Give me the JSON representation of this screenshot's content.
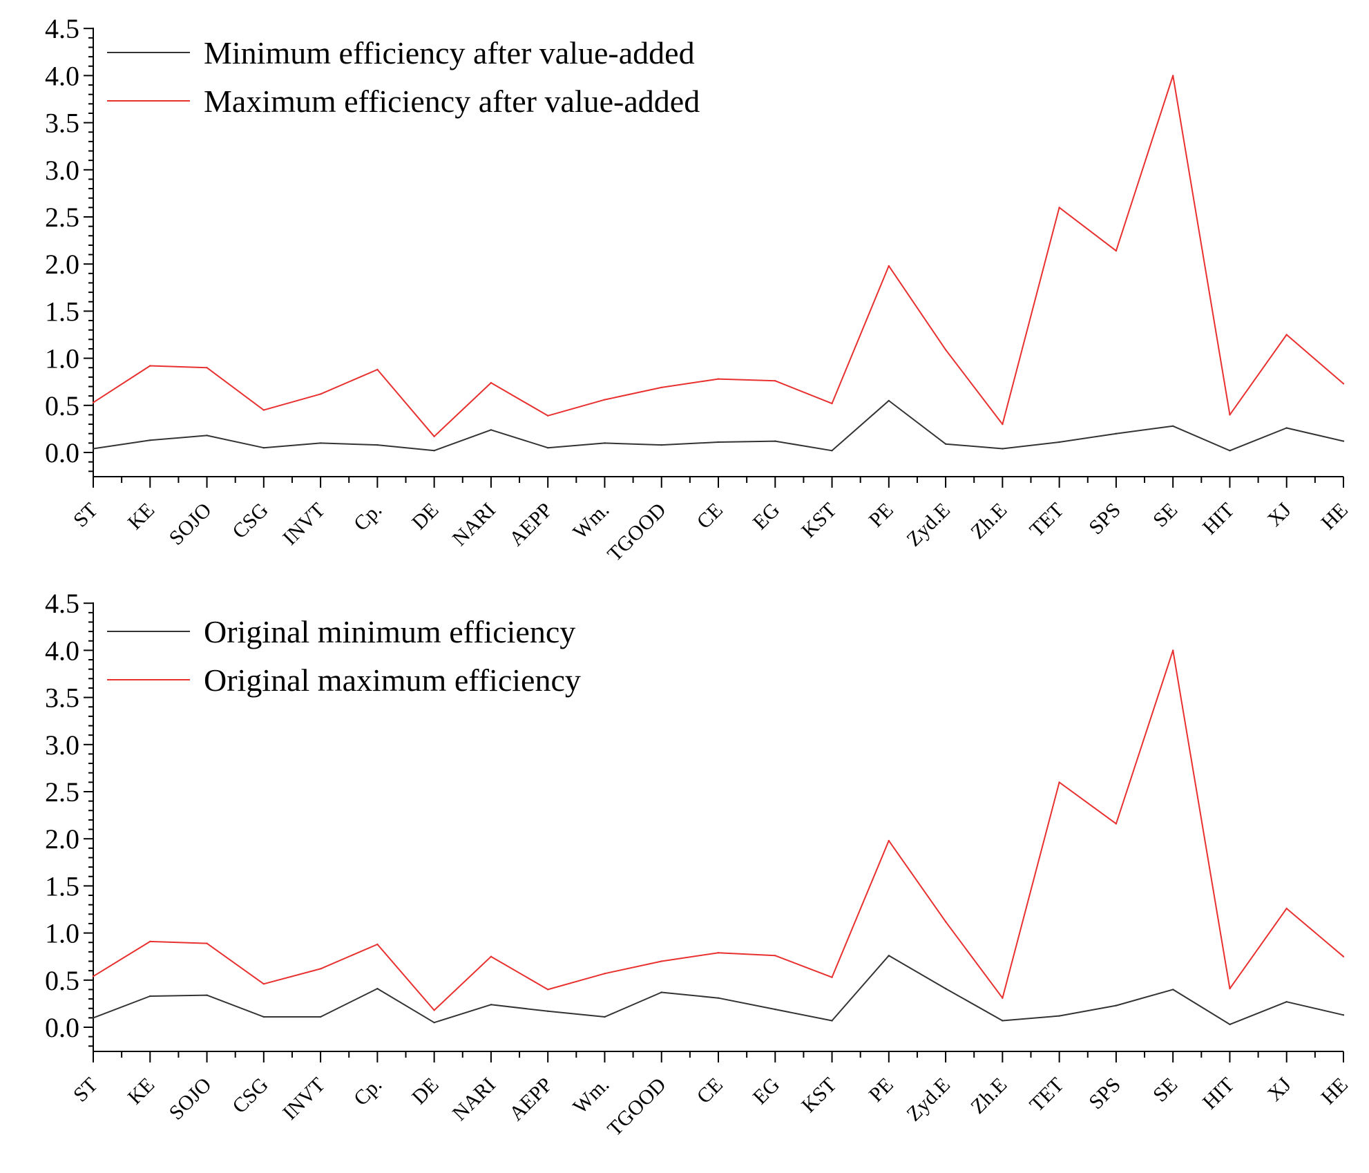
{
  "chart_data": [
    {
      "type": "line",
      "categories": [
        "ST",
        "KE",
        "SOJO",
        "CSG",
        "INVT",
        "Cp.",
        "DE",
        "NARI",
        "AEPP",
        "Wm.",
        "TGOOD",
        "CE",
        "EG",
        "KST",
        "PE",
        "Zyd.E",
        "Zh.E",
        "TET",
        "SPS",
        "SE",
        "HIT",
        "XJ",
        "HE"
      ],
      "ylim": [
        -0.25,
        4.5
      ],
      "yticks": [
        0.0,
        0.5,
        1.0,
        1.5,
        2.0,
        2.5,
        3.0,
        3.5,
        4.0,
        4.5
      ],
      "ytick_labels": [
        "0.0",
        "0.5",
        "1.0",
        "1.5",
        "2.0",
        "2.5",
        "3.0",
        "3.5",
        "4.0",
        "4.5"
      ],
      "legend_position": "top-left",
      "series": [
        {
          "name": "Minimum efficiency after value-added",
          "color": "#333333",
          "values": [
            0.04,
            0.13,
            0.18,
            0.05,
            0.1,
            0.08,
            0.02,
            0.24,
            0.05,
            0.1,
            0.08,
            0.11,
            0.12,
            0.02,
            0.55,
            0.09,
            0.04,
            0.11,
            0.2,
            0.28,
            0.02,
            0.26,
            0.12
          ]
        },
        {
          "name": "Maximum efficiency after value-added",
          "color": "#e8302f",
          "values": [
            0.53,
            0.92,
            0.9,
            0.45,
            0.62,
            0.88,
            0.17,
            0.74,
            0.39,
            0.56,
            0.69,
            0.78,
            0.76,
            0.52,
            1.98,
            1.09,
            0.3,
            2.6,
            2.14,
            4.0,
            0.4,
            1.25,
            0.73
          ]
        }
      ]
    },
    {
      "type": "line",
      "categories": [
        "ST",
        "KE",
        "SOJO",
        "CSG",
        "INVT",
        "Cp.",
        "DE",
        "NARI",
        "AEPP",
        "Wm.",
        "TGOOD",
        "CE",
        "EG",
        "KST",
        "PE",
        "Zyd.E",
        "Zh.E",
        "TET",
        "SPS",
        "SE",
        "HIT",
        "XJ",
        "HE"
      ],
      "ylim": [
        -0.25,
        4.5
      ],
      "yticks": [
        0.0,
        0.5,
        1.0,
        1.5,
        2.0,
        2.5,
        3.0,
        3.5,
        4.0,
        4.5
      ],
      "ytick_labels": [
        "0.0",
        "0.5",
        "1.0",
        "1.5",
        "2.0",
        "2.5",
        "3.0",
        "3.5",
        "4.0",
        "4.5"
      ],
      "legend_position": "top-left",
      "series": [
        {
          "name": "Original minimum efficiency",
          "color": "#333333",
          "values": [
            0.1,
            0.33,
            0.34,
            0.11,
            0.11,
            0.41,
            0.05,
            0.24,
            0.17,
            0.11,
            0.37,
            0.31,
            0.19,
            0.07,
            0.76,
            0.41,
            0.07,
            0.12,
            0.23,
            0.4,
            0.03,
            0.27,
            0.13
          ]
        },
        {
          "name": "Original maximum efficiency",
          "color": "#e8302f",
          "values": [
            0.54,
            0.91,
            0.89,
            0.46,
            0.62,
            0.88,
            0.18,
            0.75,
            0.4,
            0.57,
            0.7,
            0.79,
            0.76,
            0.53,
            1.98,
            1.12,
            0.31,
            2.6,
            2.16,
            4.0,
            0.41,
            1.26,
            0.75
          ]
        }
      ]
    }
  ]
}
